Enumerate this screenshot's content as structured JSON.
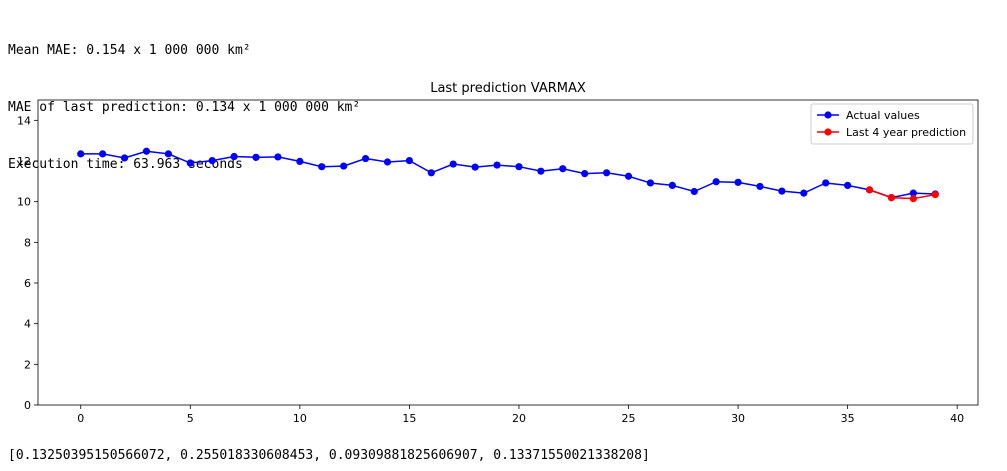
{
  "output": {
    "mean_mae": "Mean MAE: 0.154 x 1 000 000 km²",
    "last_mae": "MAE of last prediction: 0.134 x 1 000 000 km²",
    "exec_time": "Execution time: 63.963 seconds",
    "mae_list": "[0.13250395150566072, 0.255018330608453, 0.09309881825606907, 0.13371550021338208]"
  },
  "chart_data": {
    "type": "line",
    "title": "Last prediction VARMAX",
    "xlabel": "",
    "ylabel": "",
    "xlim": [
      -1.95,
      40.95
    ],
    "ylim": [
      0,
      15
    ],
    "xticks": [
      0,
      5,
      10,
      15,
      20,
      25,
      30,
      35,
      40
    ],
    "yticks": [
      0,
      2,
      4,
      6,
      8,
      10,
      12,
      14
    ],
    "grid": false,
    "legend_position": "top-right",
    "series": [
      {
        "name": "Actual values",
        "color": "#0000ff",
        "marker": "circle",
        "x": [
          0,
          1,
          2,
          3,
          4,
          5,
          6,
          7,
          8,
          9,
          10,
          11,
          12,
          13,
          14,
          15,
          16,
          17,
          18,
          19,
          20,
          21,
          22,
          23,
          24,
          25,
          26,
          27,
          28,
          29,
          30,
          31,
          32,
          33,
          34,
          35,
          36,
          37,
          38,
          39
        ],
        "y": [
          12.35,
          12.35,
          12.15,
          12.48,
          12.35,
          11.9,
          12.02,
          12.22,
          12.18,
          12.2,
          11.98,
          11.72,
          11.75,
          12.12,
          11.95,
          12.02,
          11.42,
          11.85,
          11.7,
          11.8,
          11.72,
          11.5,
          11.62,
          11.38,
          11.42,
          11.25,
          10.92,
          10.8,
          10.5,
          10.98,
          10.95,
          10.75,
          10.52,
          10.42,
          10.92,
          10.8,
          10.58,
          10.2,
          10.42,
          10.38
        ]
      },
      {
        "name": "Last 4 year prediction",
        "color": "#ff0000",
        "marker": "circle",
        "x": [
          36,
          37,
          38,
          39
        ],
        "y": [
          10.58,
          10.2,
          10.15,
          10.35
        ]
      }
    ]
  }
}
